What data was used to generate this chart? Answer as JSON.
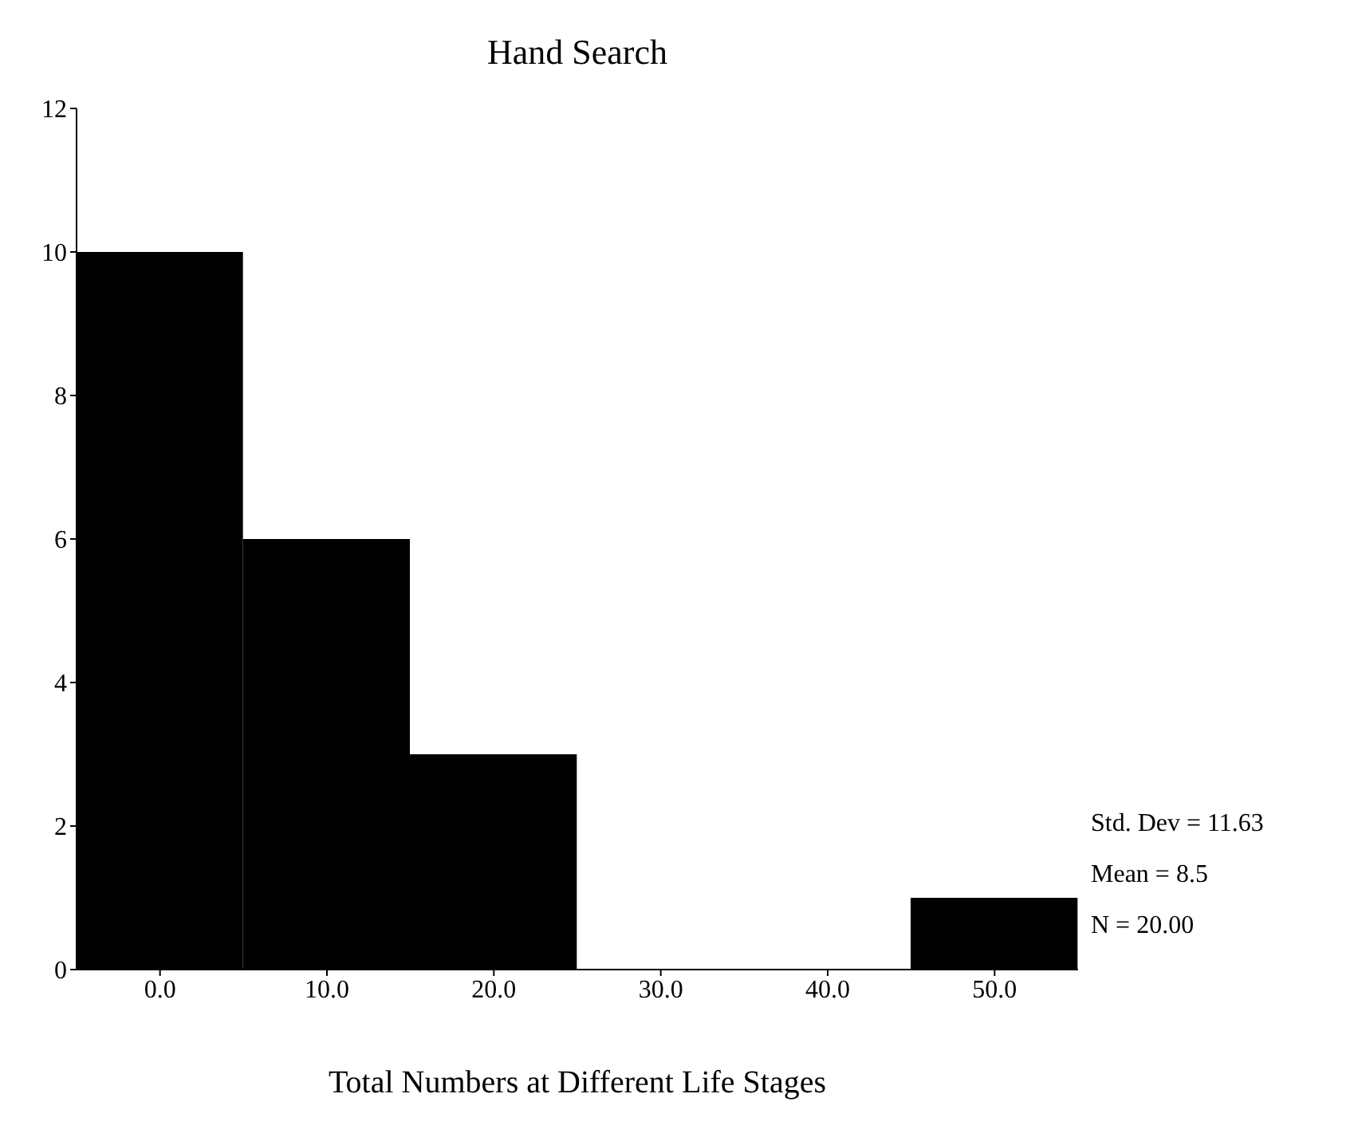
{
  "chart_data": {
    "type": "histogram",
    "title": "Hand Search",
    "xlabel": "Total Numbers at Different Life Stages",
    "bins": [
      -5,
      5,
      15,
      25,
      35,
      45,
      55
    ],
    "values": [
      10,
      6,
      3,
      0,
      0,
      1
    ],
    "color": "#000000",
    "xlim": [
      -5,
      55
    ],
    "xticks": [
      {
        "value": 0,
        "label": "0.0"
      },
      {
        "value": 10,
        "label": "10.0"
      },
      {
        "value": 20,
        "label": "20.0"
      },
      {
        "value": 30,
        "label": "30.0"
      },
      {
        "value": 40,
        "label": "40.0"
      },
      {
        "value": 50,
        "label": "50.0"
      }
    ],
    "ylim": [
      0,
      12
    ],
    "yticks": [
      0,
      2,
      4,
      6,
      8,
      10,
      12
    ],
    "annotations": [
      "Std. Dev = 11.63",
      "Mean = 8.5",
      "N = 20.00"
    ]
  }
}
